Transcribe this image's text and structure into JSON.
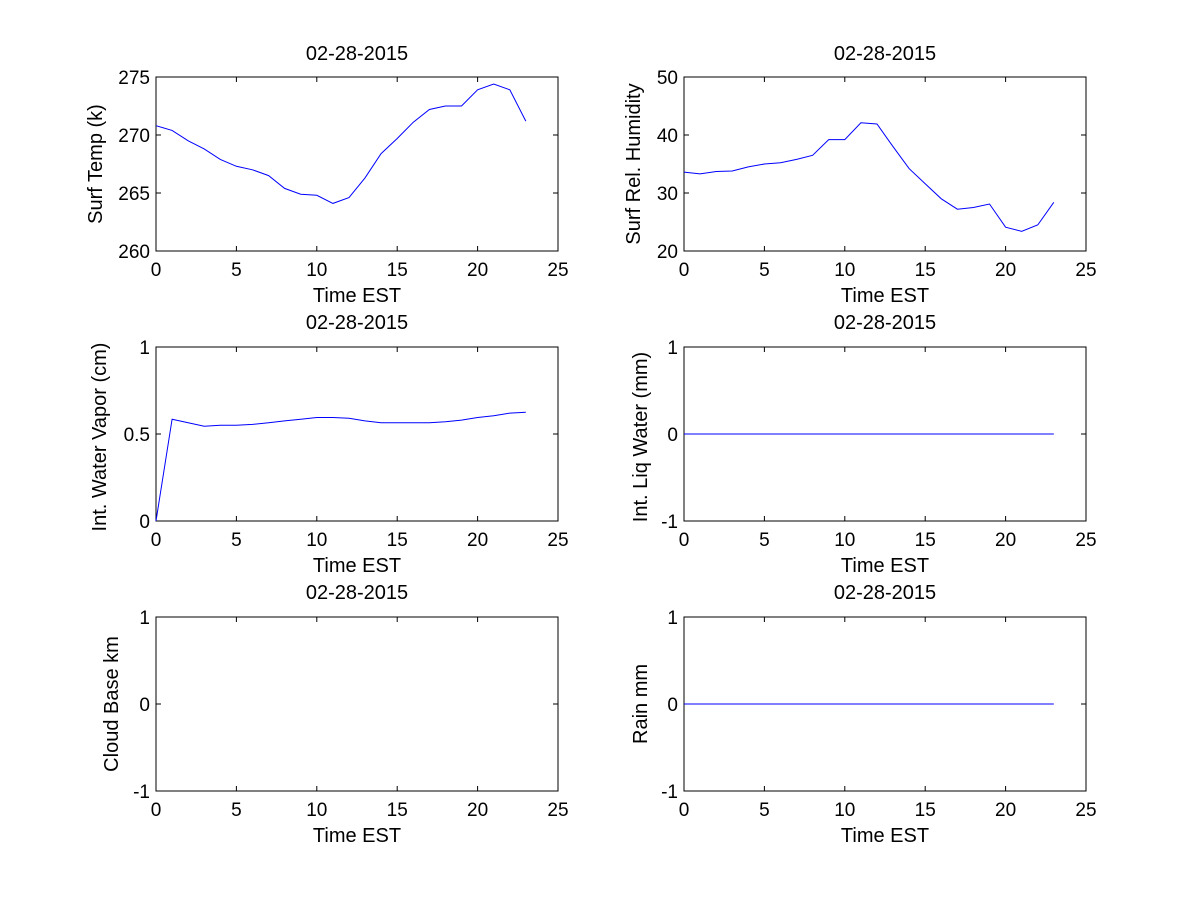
{
  "figure": {
    "background": "#ffffff",
    "line_color": "#0000ff",
    "axis_color": "#000000"
  },
  "chart_data": [
    {
      "type": "line",
      "title": "02-28-2015",
      "xlabel": "Time EST",
      "ylabel": "Surf Temp (k)",
      "xlim": [
        0,
        25
      ],
      "ylim": [
        260,
        275
      ],
      "xticks": [
        0,
        5,
        10,
        15,
        20,
        25
      ],
      "yticks": [
        260,
        265,
        270,
        275
      ],
      "series": [
        {
          "name": "Surf Temp",
          "x": [
            0,
            1,
            2,
            3,
            4,
            5,
            6,
            7,
            8,
            9,
            10,
            11,
            12,
            13,
            14,
            15,
            16,
            17,
            18,
            19,
            20,
            21,
            22,
            23
          ],
          "y": [
            270.8,
            270.4,
            269.5,
            268.8,
            267.9,
            267.3,
            267.0,
            266.5,
            265.4,
            264.9,
            264.8,
            264.1,
            264.6,
            266.3,
            268.4,
            269.7,
            271.1,
            272.2,
            272.5,
            272.5,
            273.9,
            274.4,
            273.9,
            271.2
          ]
        }
      ]
    },
    {
      "type": "line",
      "title": "02-28-2015",
      "xlabel": "Time EST",
      "ylabel": "Surf Rel. Humidity",
      "xlim": [
        0,
        25
      ],
      "ylim": [
        20,
        50
      ],
      "xticks": [
        0,
        5,
        10,
        15,
        20,
        25
      ],
      "yticks": [
        20,
        30,
        40,
        50
      ],
      "series": [
        {
          "name": "Surf Rel. Humidity",
          "x": [
            0,
            1,
            2,
            3,
            4,
            5,
            6,
            7,
            8,
            9,
            10,
            11,
            12,
            13,
            14,
            15,
            16,
            17,
            18,
            19,
            20,
            21,
            22,
            23
          ],
          "y": [
            33.6,
            33.3,
            33.7,
            33.8,
            34.5,
            35.0,
            35.2,
            35.8,
            36.5,
            39.2,
            39.2,
            42.1,
            41.9,
            38.0,
            34.2,
            31.6,
            29.0,
            27.2,
            27.5,
            28.1,
            24.1,
            23.4,
            24.5,
            28.4
          ]
        }
      ]
    },
    {
      "type": "line",
      "title": "02-28-2015",
      "xlabel": "Time EST",
      "ylabel": "Int. Water Vapor (cm)",
      "xlim": [
        0,
        25
      ],
      "ylim": [
        0,
        1
      ],
      "xticks": [
        0,
        5,
        10,
        15,
        20,
        25
      ],
      "yticks": [
        0,
        0.5,
        1
      ],
      "series": [
        {
          "name": "Int. Water Vapor",
          "x": [
            0,
            1,
            2,
            3,
            4,
            5,
            6,
            7,
            8,
            9,
            10,
            11,
            12,
            13,
            14,
            15,
            16,
            17,
            18,
            19,
            20,
            21,
            22,
            23
          ],
          "y": [
            0.0,
            0.585,
            0.565,
            0.545,
            0.55,
            0.55,
            0.555,
            0.565,
            0.575,
            0.585,
            0.595,
            0.595,
            0.59,
            0.575,
            0.565,
            0.565,
            0.565,
            0.565,
            0.57,
            0.58,
            0.595,
            0.605,
            0.62,
            0.625
          ]
        }
      ]
    },
    {
      "type": "line",
      "title": "02-28-2015",
      "xlabel": "Time EST",
      "ylabel": "Int. Liq Water (mm)",
      "xlim": [
        0,
        25
      ],
      "ylim": [
        -1,
        1
      ],
      "xticks": [
        0,
        5,
        10,
        15,
        20,
        25
      ],
      "yticks": [
        -1,
        0,
        1
      ],
      "series": [
        {
          "name": "Int. Liq Water",
          "x": [
            0,
            23
          ],
          "y": [
            0,
            0
          ]
        }
      ]
    },
    {
      "type": "line",
      "title": "02-28-2015",
      "xlabel": "Time EST",
      "ylabel": "Cloud Base km",
      "xlim": [
        0,
        25
      ],
      "ylim": [
        -1,
        1
      ],
      "xticks": [
        0,
        5,
        10,
        15,
        20,
        25
      ],
      "yticks": [
        -1,
        0,
        1
      ],
      "series": []
    },
    {
      "type": "line",
      "title": "02-28-2015",
      "xlabel": "Time EST",
      "ylabel": "Rain mm",
      "xlim": [
        0,
        25
      ],
      "ylim": [
        -1,
        1
      ],
      "xticks": [
        0,
        5,
        10,
        15,
        20,
        25
      ],
      "yticks": [
        -1,
        0,
        1
      ],
      "series": [
        {
          "name": "Rain",
          "x": [
            0,
            23
          ],
          "y": [
            0,
            0
          ]
        }
      ]
    }
  ]
}
